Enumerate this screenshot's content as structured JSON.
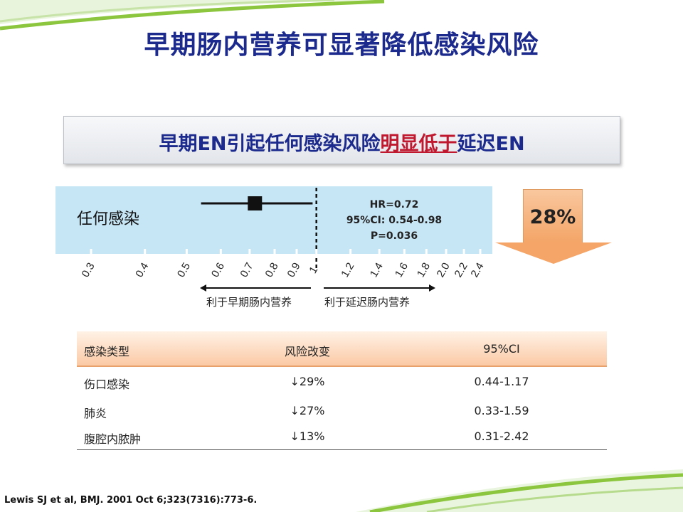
{
  "slide": {
    "title": "早期肠内营养可显著降低感染风险",
    "subtitle": {
      "before": "早期EN引起任何感染风险",
      "highlight": "明显低于",
      "after": "延迟EN"
    },
    "reduction_badge": "28%",
    "reference": "Lewis SJ et al, BMJ. 2001 Oct 6;323(7316):773-6.",
    "colors": {
      "title": "#1b2a8c",
      "highlight": "#c0182e",
      "band": "#c6e5f5",
      "arrow": "#f4a567",
      "table_header": "#fbc9a5"
    }
  },
  "chart_data": {
    "type": "forest",
    "x_scale": "log",
    "xlim": [
      0.3,
      2.4
    ],
    "ticks": [
      "0.3",
      "0.4",
      "0.5",
      "0.6",
      "0.7",
      "0.8",
      "0.9",
      "1",
      "1.2",
      "1.4",
      "1.6",
      "1.8",
      "2.0",
      "2.2",
      "2.4"
    ],
    "reference_line": 1,
    "rows": [
      {
        "label": "任何感染",
        "estimate": 0.72,
        "ci_low": 0.54,
        "ci_high": 0.98
      }
    ],
    "stats": {
      "hr": "HR=0.72",
      "ci": "95%CI: 0.54-0.98",
      "p": "P=0.036"
    },
    "direction_left": "利于早期肠内营养",
    "direction_right": "利于延迟肠内营养"
  },
  "table": {
    "headers": [
      "感染类型",
      "风险改变",
      "95%CI"
    ],
    "rows": [
      [
        "伤口感染",
        "↓29%",
        "0.44-1.17"
      ],
      [
        "肺炎",
        "↓27%",
        "0.33-1.59"
      ],
      [
        "腹腔内脓肿",
        "↓13%",
        "0.31-2.42"
      ]
    ]
  }
}
